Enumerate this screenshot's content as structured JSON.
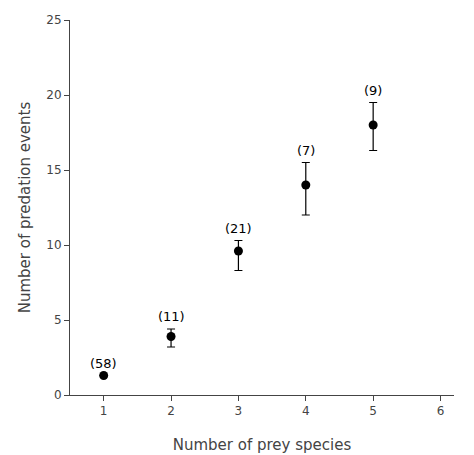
{
  "chart_data": {
    "type": "scatter",
    "x": [
      1,
      2,
      3,
      4,
      5
    ],
    "y": [
      1.3,
      3.9,
      9.6,
      14.0,
      18.0
    ],
    "yerr_upper": [
      0.0,
      0.5,
      0.7,
      1.5,
      1.5
    ],
    "yerr_lower": [
      0.0,
      0.7,
      1.3,
      2.0,
      1.7
    ],
    "labels": [
      "(58)",
      "(11)",
      "(21)",
      "(7)",
      "(9)"
    ],
    "xlabel": "Number of prey species",
    "ylabel": "Number of predation events",
    "xlim": [
      0.5,
      6.2
    ],
    "ylim": [
      0,
      25
    ],
    "xticks": [
      1,
      2,
      3,
      4,
      5,
      6
    ],
    "yticks": [
      0,
      5,
      10,
      15,
      20,
      25
    ],
    "color": "black",
    "marker": "circle",
    "grid": false
  }
}
